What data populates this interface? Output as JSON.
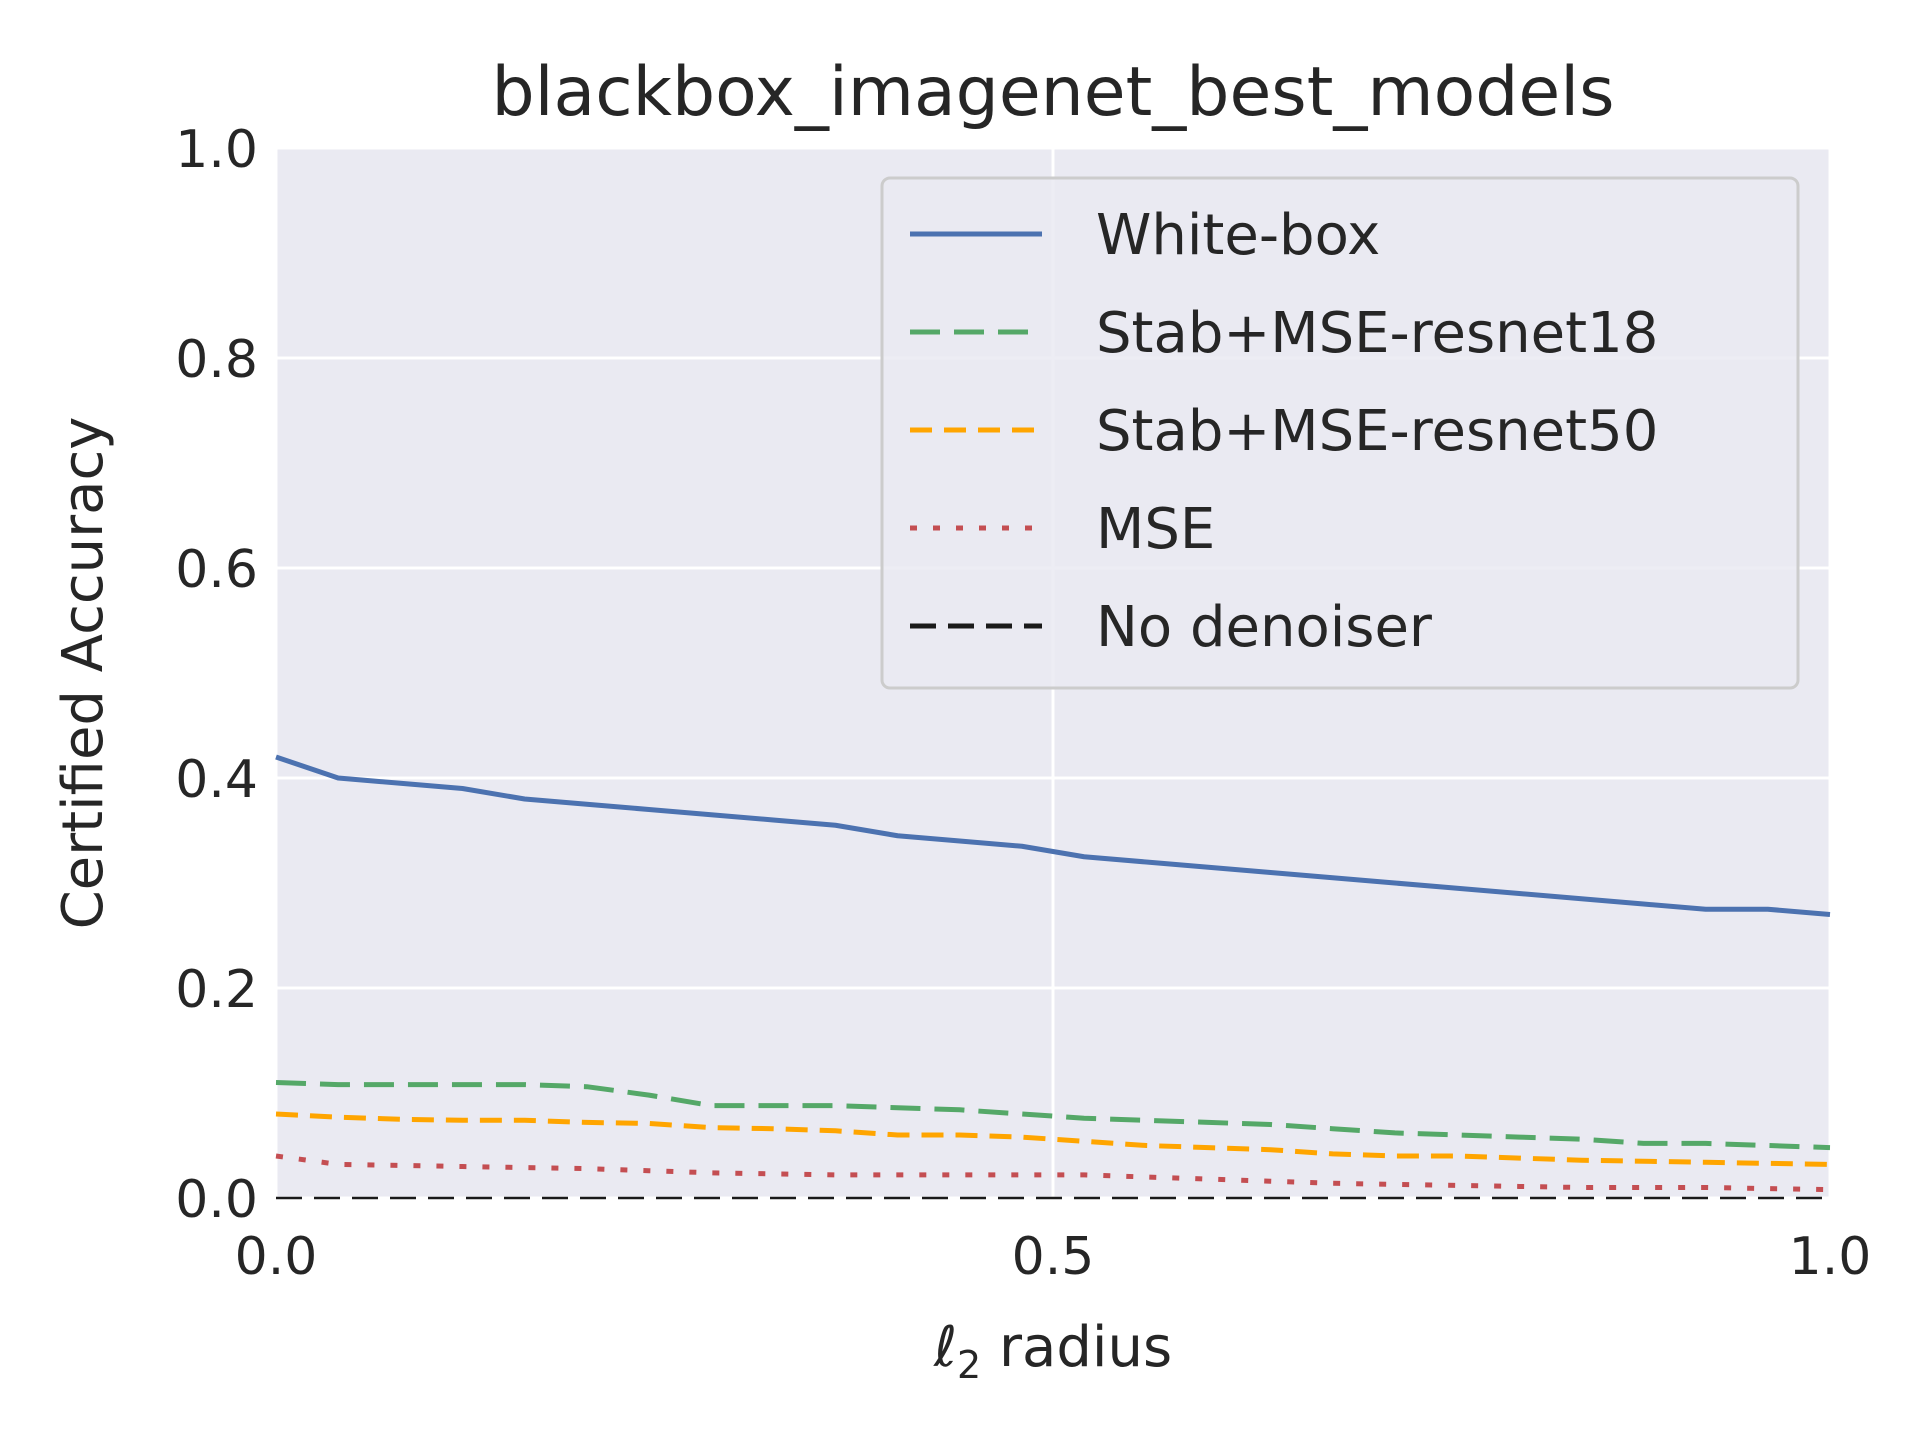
{
  "chart_data": {
    "type": "line",
    "title": "blackbox_imagenet_best_models",
    "xlabel": "ℓ2 radius",
    "ylabel": "Certified Accuracy",
    "xlim": [
      0.0,
      1.0
    ],
    "ylim": [
      0.0,
      1.0
    ],
    "xticks": [
      "0.0",
      "0.5",
      "1.0"
    ],
    "yticks": [
      "0.0",
      "0.2",
      "0.4",
      "0.6",
      "0.8",
      "1.0"
    ],
    "grid": true,
    "legend_position": "top-right",
    "x": [
      0.0,
      0.04,
      0.08,
      0.12,
      0.16,
      0.2,
      0.24,
      0.28,
      0.32,
      0.36,
      0.4,
      0.44,
      0.48,
      0.52,
      0.56,
      0.6,
      0.64,
      0.68,
      0.72,
      0.76,
      0.8,
      0.84,
      0.88,
      0.92,
      0.96,
      1.0
    ],
    "series": [
      {
        "name": "White-box",
        "color": "#4c72b0",
        "style": "solid",
        "values": [
          0.42,
          0.4,
          0.395,
          0.39,
          0.38,
          0.375,
          0.37,
          0.365,
          0.36,
          0.355,
          0.345,
          0.34,
          0.335,
          0.325,
          0.32,
          0.315,
          0.31,
          0.305,
          0.3,
          0.295,
          0.29,
          0.285,
          0.28,
          0.275,
          0.275,
          0.27
        ]
      },
      {
        "name": "Stab+MSE-resnet18",
        "color": "#55a868",
        "style": "dashed",
        "values": [
          0.11,
          0.108,
          0.108,
          0.108,
          0.108,
          0.106,
          0.098,
          0.088,
          0.088,
          0.088,
          0.086,
          0.084,
          0.08,
          0.076,
          0.074,
          0.072,
          0.07,
          0.066,
          0.062,
          0.06,
          0.058,
          0.056,
          0.052,
          0.052,
          0.05,
          0.048
        ]
      },
      {
        "name": "Stab+MSE-resnet50",
        "color": "#ffa500",
        "style": "dashed",
        "values": [
          0.08,
          0.077,
          0.075,
          0.074,
          0.074,
          0.072,
          0.071,
          0.067,
          0.066,
          0.064,
          0.06,
          0.06,
          0.058,
          0.054,
          0.05,
          0.048,
          0.046,
          0.042,
          0.04,
          0.04,
          0.038,
          0.036,
          0.035,
          0.034,
          0.033,
          0.032
        ]
      },
      {
        "name": "MSE",
        "color": "#c44e52",
        "style": "dotted",
        "values": [
          0.04,
          0.032,
          0.031,
          0.03,
          0.029,
          0.028,
          0.026,
          0.024,
          0.023,
          0.022,
          0.022,
          0.022,
          0.022,
          0.022,
          0.02,
          0.018,
          0.016,
          0.014,
          0.013,
          0.012,
          0.011,
          0.01,
          0.01,
          0.01,
          0.009,
          0.008
        ]
      },
      {
        "name": "No denoiser",
        "color": "#1a1a1a",
        "style": "dashed",
        "values": [
          0.0,
          0.0,
          0.0,
          0.0,
          0.0,
          0.0,
          0.0,
          0.0,
          0.0,
          0.0,
          0.0,
          0.0,
          0.0,
          0.0,
          0.0,
          0.0,
          0.0,
          0.0,
          0.0,
          0.0,
          0.0,
          0.0,
          0.0,
          0.0,
          0.0,
          0.0
        ]
      }
    ]
  }
}
